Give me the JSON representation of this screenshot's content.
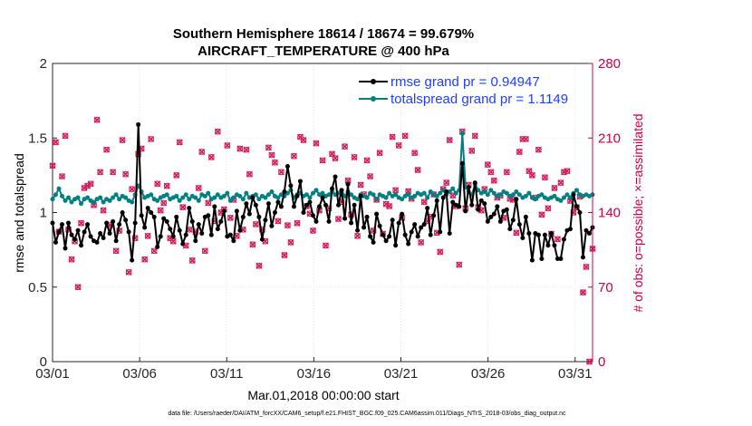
{
  "chart_data": {
    "type": "line",
    "title": [
      "Southern Hemisphere 18614 / 18674 = 99.679%",
      "AIRCRAFT_TEMPERATURE @ 400 hPa"
    ],
    "xlabel": "Mar.01,2018 00:00:00 start",
    "ylabel_left": "rmse and totalspread",
    "ylabel_right": "# of obs: o=possible; ×=assimilated",
    "x_ticks": [
      {
        "label": "03/01",
        "day": 1
      },
      {
        "label": "03/06",
        "day": 6
      },
      {
        "label": "03/11",
        "day": 11
      },
      {
        "label": "03/16",
        "day": 16
      },
      {
        "label": "03/21",
        "day": 21
      },
      {
        "label": "03/26",
        "day": 26
      },
      {
        "label": "03/31",
        "day": 31
      }
    ],
    "xlim": [
      1,
      32
    ],
    "ylim_left": [
      0,
      2
    ],
    "ylim_right": [
      0,
      280
    ],
    "yticks_left": [
      "0",
      "0.5",
      "1",
      "1.5",
      "2"
    ],
    "yticks_right": [
      "0",
      "70",
      "140",
      "210",
      "280"
    ],
    "colors": {
      "rmse": "#000000",
      "spread": "#008080",
      "obs": "#d21e5a",
      "right_axis": "#c8004b",
      "legend_text": "#1f3fff"
    },
    "series": [
      {
        "name": "rmse grand pr = 0.94947",
        "axis": "left",
        "values": [
          0.93,
          0.8,
          0.87,
          0.92,
          0.76,
          0.93,
          0.85,
          0.82,
          0.88,
          0.78,
          0.87,
          0.92,
          0.84,
          0.81,
          0.8,
          0.86,
          0.83,
          0.93,
          0.86,
          0.94,
          0.81,
          0.92,
          1.0,
          0.95,
          0.87,
          0.68,
          0.93,
          1.59,
          0.98,
          0.9,
          1.03,
          1.0,
          0.97,
          0.77,
          0.84,
          0.96,
          0.94,
          0.89,
          0.84,
          0.97,
          0.88,
          0.79,
          0.85,
          1.03,
          0.94,
          0.81,
          0.92,
          0.86,
          0.97,
          0.98,
          0.85,
          1.04,
          0.89,
          0.94,
          1.01,
          0.84,
          0.85,
          0.81,
          1.01,
          0.88,
          0.97,
          1.06,
          0.99,
          1.1,
          1.05,
          0.97,
          0.82,
          0.95,
          1.06,
          0.91,
          1.0,
          1.07,
          1.04,
          1.14,
          1.31,
          1.18,
          1.04,
          1.11,
          1.21,
          1.0,
          1.05,
          1.07,
          0.98,
          0.94,
          1.04,
          1.1,
          1.05,
          0.94,
          1.16,
          1.24,
          1.05,
          1.15,
          0.96,
          1.19,
          0.93,
          1.05,
          0.88,
          1.11,
          0.9,
          0.97,
          0.84,
          0.8,
          0.99,
          0.91,
          0.85,
          0.81,
          0.84,
          0.95,
          0.78,
          0.93,
          0.99,
          0.85,
          0.79,
          0.87,
          0.92,
          0.84,
          0.9,
          0.92,
          1.03,
          0.85,
          0.98,
          1.08,
          0.87,
          1.1,
          1.14,
          0.86,
          1.07,
          1.05,
          1.04,
          1.33,
          1.01,
          1.17,
          1.05,
          1.2,
          1.02,
          1.08,
          1.06,
          0.94,
          0.97,
          0.99,
          1.04,
          0.94,
          1.01,
          1.02,
          0.89,
          0.95,
          1.09,
          0.92,
          0.83,
          0.97,
          0.86,
          0.68,
          0.86,
          0.85,
          0.69,
          0.85,
          0.78,
          0.86,
          0.78,
          0.69,
          0.69,
          0.82,
          0.88,
          0.89,
          1.12,
          1.04,
          1.0,
          0.7,
          0.88,
          0.86,
          0.9
        ]
      },
      {
        "name": "totalspread grand pr = 1.1149",
        "axis": "left",
        "values": [
          1.09,
          1.12,
          1.16,
          1.11,
          1.08,
          1.1,
          1.07,
          1.09,
          1.1,
          1.06,
          1.09,
          1.1,
          1.08,
          1.07,
          1.09,
          1.1,
          1.07,
          1.09,
          1.08,
          1.1,
          1.12,
          1.09,
          1.11,
          1.1,
          1.08,
          1.07,
          1.12,
          1.18,
          1.14,
          1.1,
          1.11,
          1.12,
          1.09,
          1.08,
          1.1,
          1.11,
          1.12,
          1.09,
          1.1,
          1.11,
          1.08,
          1.1,
          1.12,
          1.09,
          1.11,
          1.1,
          1.08,
          1.12,
          1.11,
          1.13,
          1.09,
          1.1,
          1.12,
          1.1,
          1.11,
          1.13,
          1.08,
          1.1,
          1.12,
          1.11,
          1.09,
          1.13,
          1.1,
          1.11,
          1.12,
          1.09,
          1.11,
          1.1,
          1.12,
          1.14,
          1.11,
          1.1,
          1.12,
          1.11,
          1.13,
          1.15,
          1.1,
          1.12,
          1.13,
          1.11,
          1.12,
          1.1,
          1.13,
          1.15,
          1.12,
          1.13,
          1.11,
          1.12,
          1.14,
          1.12,
          1.13,
          1.15,
          1.11,
          1.14,
          1.12,
          1.1,
          1.09,
          1.12,
          1.11,
          1.1,
          1.13,
          1.12,
          1.09,
          1.12,
          1.11,
          1.1,
          1.13,
          1.11,
          1.12,
          1.1,
          1.09,
          1.11,
          1.12,
          1.1,
          1.11,
          1.13,
          1.12,
          1.13,
          1.1,
          1.14,
          1.12,
          1.11,
          1.13,
          1.15,
          1.12,
          1.14,
          1.16,
          1.13,
          1.15,
          1.53,
          1.17,
          1.14,
          1.12,
          1.19,
          1.15,
          1.13,
          1.14,
          1.12,
          1.15,
          1.13,
          1.11,
          1.12,
          1.14,
          1.13,
          1.11,
          1.12,
          1.14,
          1.12,
          1.1,
          1.11,
          1.13,
          1.1,
          1.09,
          1.11,
          1.12,
          1.1,
          1.09,
          1.1,
          1.11,
          1.09,
          1.08,
          1.1,
          1.12,
          1.1,
          1.13,
          1.15,
          1.12,
          1.11,
          1.12,
          1.11,
          1.12
        ]
      },
      {
        "name": "obs possible",
        "axis": "right",
        "values": [
          184,
          206,
          122,
          174,
          212,
          124,
          96,
          113,
          70,
          130,
          163,
          165,
          167,
          147,
          227,
          178,
          142,
          199,
          128,
          178,
          104,
          123,
          208,
          176,
          84,
          162,
          116,
          195,
          200,
          96,
          118,
          209,
          104,
          167,
          142,
          149,
          165,
          116,
          113,
          175,
          206,
          145,
          109,
          124,
          95,
          122,
          163,
          197,
          104,
          149,
          192,
          132,
          216,
          140,
          143,
          203,
          135,
          152,
          118,
          200,
          124,
          199,
          176,
          110,
          129,
          90,
          124,
          113,
          201,
          194,
          187,
          132,
          178,
          100,
          128,
          112,
          193,
          130,
          211,
          208,
          146,
          139,
          123,
          205,
          142,
          189,
          109,
          144,
          195,
          191,
          134,
          150,
          202,
          170,
          138,
          192,
          118,
          166,
          157,
          189,
          174,
          123,
          152,
          196,
          120,
          148,
          146,
          211,
          161,
          203,
          135,
          212,
          160,
          153,
          196,
          180,
          112,
          150,
          132,
          136,
          157,
          121,
          103,
          162,
          168,
          208,
          156,
          146,
          91,
          216,
          144,
          166,
          198,
          212,
          145,
          142,
          162,
          185,
          178,
          170,
          154,
          156,
          135,
          178,
          153,
          152,
          121,
          197,
          209,
          209,
          179,
          175,
          154,
          199,
          138,
          173,
          144,
          120,
          163,
          115,
          168,
          178,
          179,
          151,
          140,
          145,
          155,
          65,
          89,
          0,
          106
        ]
      },
      {
        "name": "obs assimilated",
        "axis": "right",
        "values": [
          184,
          206,
          122,
          174,
          212,
          124,
          96,
          113,
          70,
          130,
          163,
          165,
          167,
          147,
          227,
          178,
          142,
          199,
          128,
          178,
          104,
          123,
          208,
          176,
          84,
          162,
          116,
          195,
          200,
          96,
          118,
          209,
          104,
          167,
          142,
          149,
          165,
          116,
          113,
          175,
          206,
          145,
          109,
          124,
          95,
          122,
          163,
          197,
          104,
          149,
          192,
          132,
          216,
          140,
          143,
          203,
          135,
          152,
          118,
          200,
          124,
          199,
          176,
          110,
          129,
          90,
          124,
          113,
          201,
          194,
          187,
          132,
          178,
          100,
          128,
          112,
          193,
          130,
          211,
          208,
          146,
          139,
          123,
          205,
          142,
          189,
          109,
          144,
          195,
          191,
          134,
          150,
          202,
          170,
          138,
          192,
          118,
          166,
          157,
          189,
          174,
          123,
          152,
          196,
          120,
          148,
          146,
          211,
          161,
          203,
          135,
          212,
          160,
          153,
          196,
          180,
          112,
          150,
          132,
          136,
          157,
          121,
          103,
          162,
          168,
          208,
          156,
          146,
          91,
          216,
          144,
          166,
          198,
          212,
          145,
          142,
          162,
          185,
          178,
          170,
          154,
          156,
          135,
          178,
          153,
          152,
          121,
          197,
          209,
          209,
          179,
          175,
          154,
          199,
          138,
          173,
          144,
          120,
          163,
          115,
          168,
          178,
          179,
          151,
          140,
          145,
          155,
          65,
          89,
          0,
          106
        ]
      }
    ],
    "legend": [
      "rmse grand pr = 0.94947",
      "totalspread grand pr = 1.1149"
    ],
    "legend_position": "top-right",
    "grid": true,
    "footer": "data file: /Users/raeder/DAI/ATM_forcXX/CAM6_setup/f.e21.FHIST_BGC.f09_025.CAM6assim.011/Diags_NTrS_2018-03/obs_diag_output.nc"
  }
}
